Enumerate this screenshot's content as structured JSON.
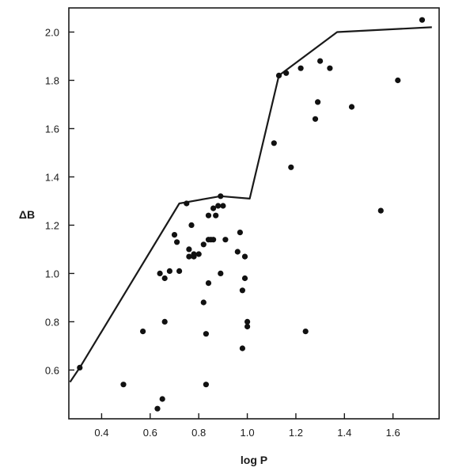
{
  "chart_data": {
    "type": "scatter",
    "title": "",
    "xlabel": "log P",
    "ylabel": "ΔB",
    "xlim": [
      0.265,
      1.79
    ],
    "ylim": [
      0.398,
      2.1
    ],
    "grid": false,
    "legend": "none",
    "xticks": [
      {
        "value": 0.4,
        "label": "0.4"
      },
      {
        "value": 0.6,
        "label": "0.6"
      },
      {
        "value": 0.8,
        "label": "0.8"
      },
      {
        "value": 1.0,
        "label": "1.0"
      },
      {
        "value": 1.2,
        "label": "1.2"
      },
      {
        "value": 1.4,
        "label": "1.4"
      },
      {
        "value": 1.6,
        "label": "1.6"
      }
    ],
    "yticks": [
      {
        "value": 0.6,
        "label": "0.6"
      },
      {
        "value": 0.8,
        "label": "0.8"
      },
      {
        "value": 1.0,
        "label": "1.0"
      },
      {
        "value": 1.2,
        "label": "1.2"
      },
      {
        "value": 1.4,
        "label": "1.4"
      },
      {
        "value": 1.6,
        "label": "1.6"
      },
      {
        "value": 1.8,
        "label": "1.8"
      },
      {
        "value": 2.0,
        "label": "2.0"
      }
    ],
    "envelope": {
      "x": [
        0.27,
        0.31,
        0.72,
        0.89,
        1.01,
        1.13,
        1.37,
        1.76
      ],
      "y": [
        0.55,
        0.61,
        1.29,
        1.32,
        1.31,
        1.82,
        2.0,
        2.02
      ]
    },
    "points": {
      "x": [
        0.31,
        0.49,
        0.57,
        0.63,
        0.64,
        0.65,
        0.66,
        0.66,
        0.68,
        0.7,
        0.71,
        0.72,
        0.75,
        0.76,
        0.76,
        0.77,
        0.78,
        0.78,
        0.8,
        0.82,
        0.82,
        0.83,
        0.83,
        0.84,
        0.84,
        0.84,
        0.85,
        0.86,
        0.86,
        0.87,
        0.88,
        0.89,
        0.89,
        0.9,
        0.91,
        0.96,
        0.97,
        0.98,
        0.98,
        0.99,
        0.99,
        1.0,
        1.0,
        1.11,
        1.13,
        1.16,
        1.18,
        1.22,
        1.24,
        1.28,
        1.29,
        1.3,
        1.34,
        1.43,
        1.55,
        1.62,
        1.72
      ],
      "y": [
        0.61,
        0.54,
        0.76,
        0.44,
        1.0,
        0.48,
        0.98,
        0.8,
        1.01,
        1.16,
        1.13,
        1.01,
        1.29,
        1.1,
        1.07,
        1.2,
        1.08,
        1.07,
        1.08,
        1.12,
        0.88,
        0.75,
        0.54,
        1.14,
        0.96,
        1.24,
        1.14,
        1.14,
        1.27,
        1.24,
        1.28,
        1.32,
        1.0,
        1.28,
        1.14,
        1.09,
        1.17,
        0.93,
        0.69,
        0.98,
        1.07,
        0.8,
        0.78,
        1.54,
        1.82,
        1.83,
        1.44,
        1.85,
        0.76,
        1.64,
        1.71,
        1.88,
        1.85,
        1.69,
        1.26,
        1.8,
        2.05
      ]
    }
  }
}
